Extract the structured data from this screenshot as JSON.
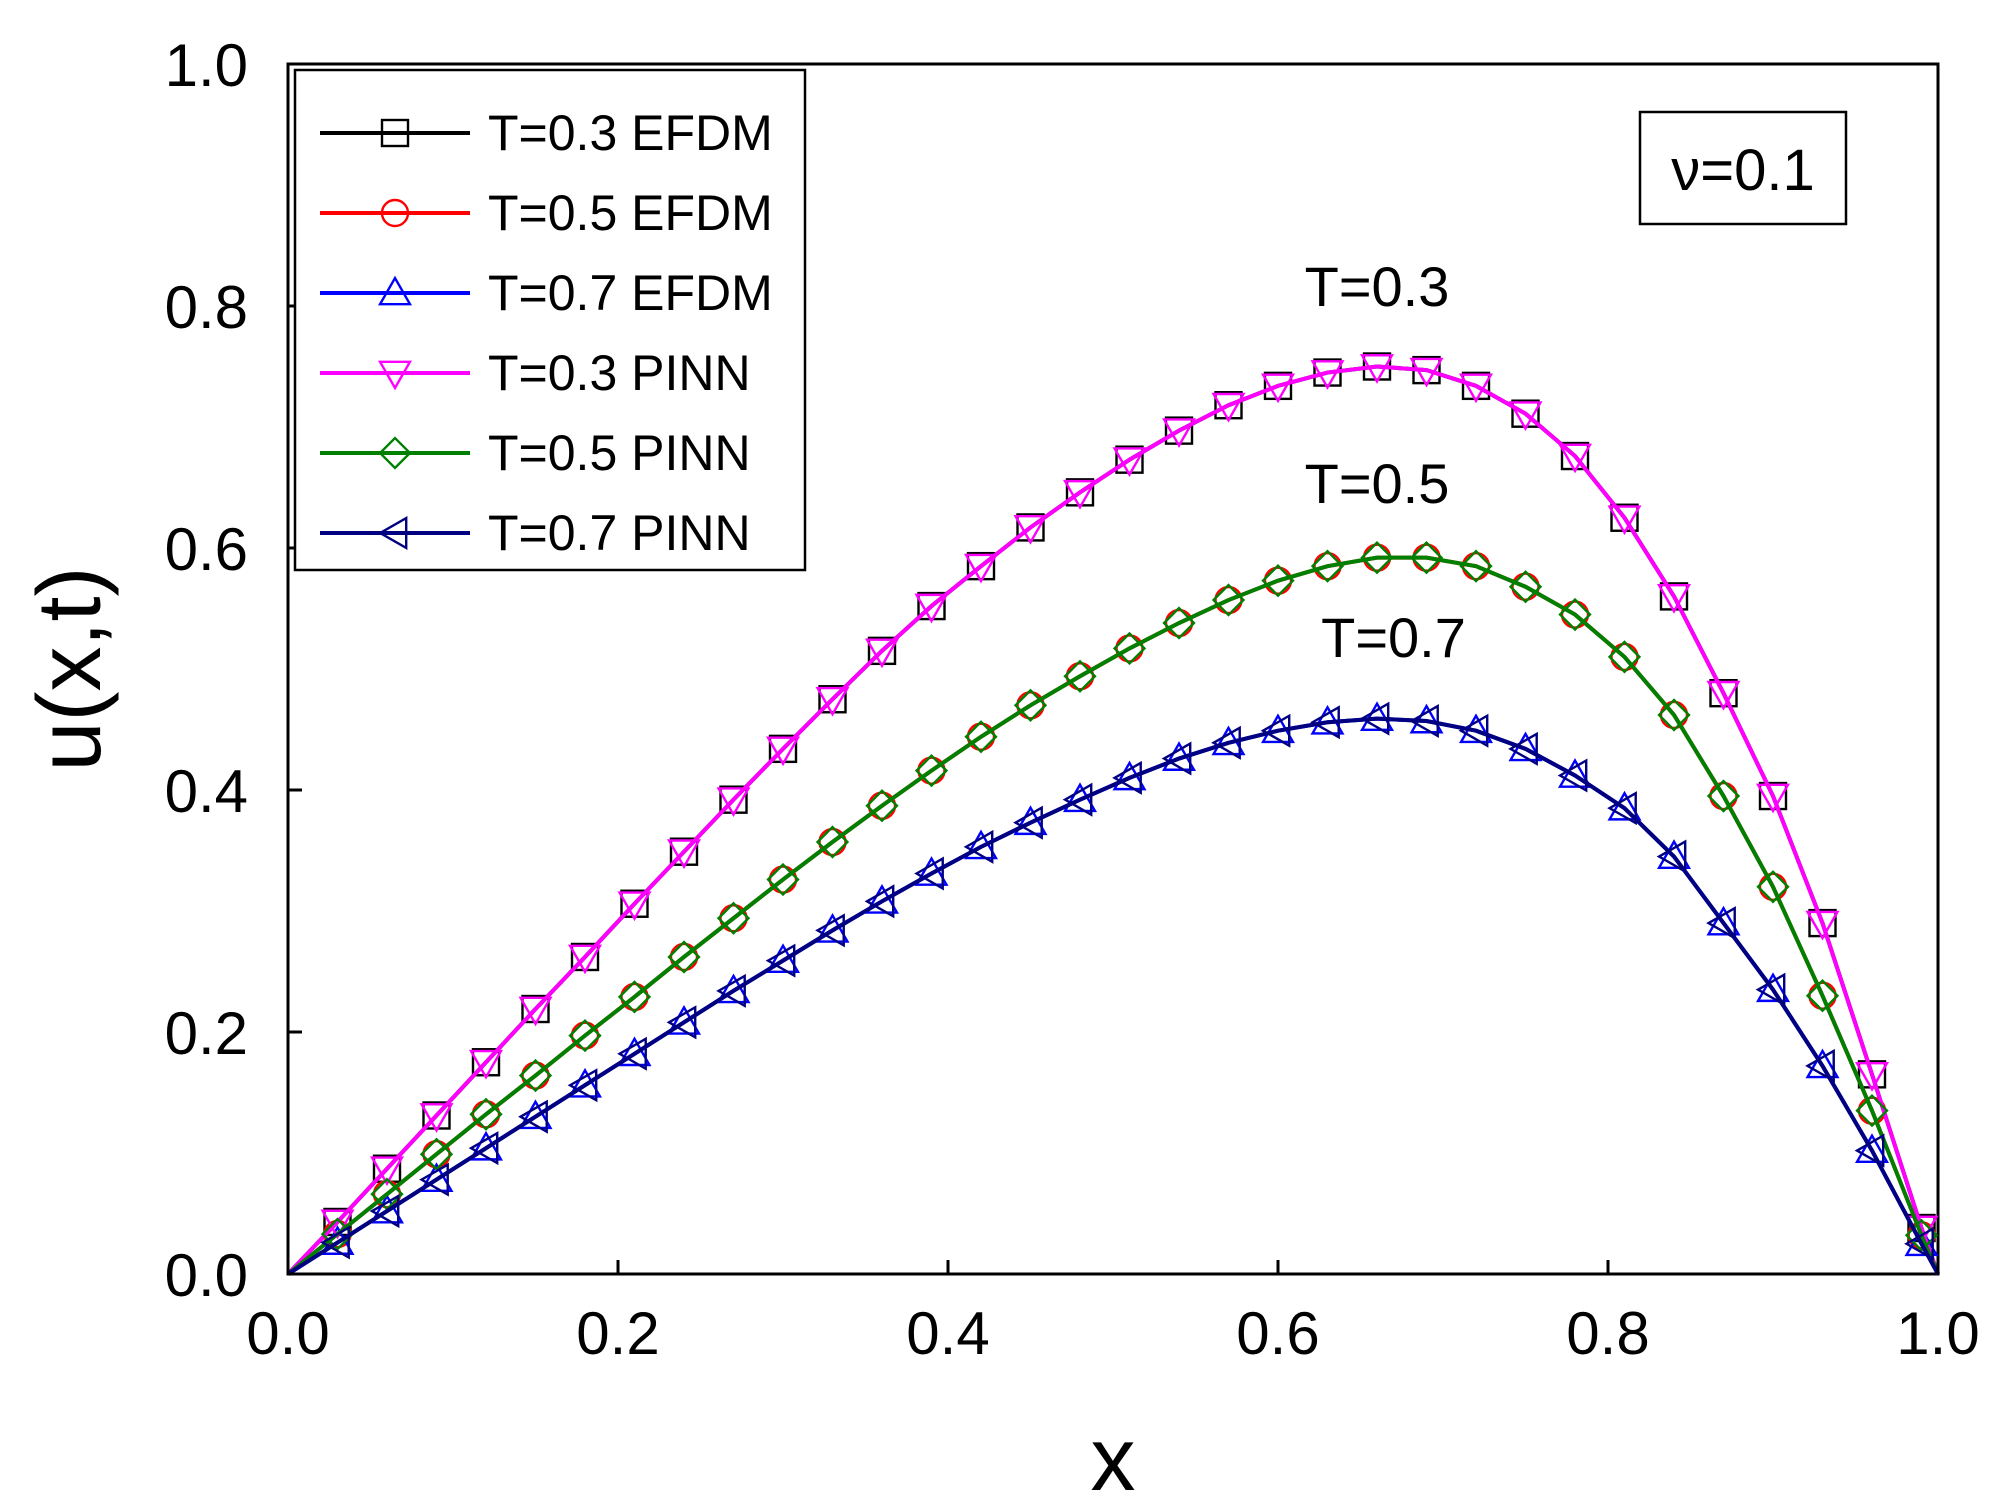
{
  "chart_data": {
    "type": "line",
    "title": "",
    "xlabel": "x",
    "ylabel": "u(x,t)",
    "xlim": [
      0.0,
      1.0
    ],
    "ylim": [
      0.0,
      1.0
    ],
    "xticks": [
      "0.0",
      "0.2",
      "0.4",
      "0.6",
      "0.8",
      "1.0"
    ],
    "yticks": [
      "0.0",
      "0.2",
      "0.4",
      "0.6",
      "0.8",
      "1.0"
    ],
    "grid": false,
    "legend_position": "top-left",
    "parameter_label": "ν=0.1",
    "annotations": [
      {
        "text": "T=0.3",
        "x": 0.66,
        "y": 0.8
      },
      {
        "text": "T=0.5",
        "x": 0.66,
        "y": 0.637
      },
      {
        "text": "T=0.7",
        "x": 0.67,
        "y": 0.51
      }
    ],
    "x": [
      0.0,
      0.03,
      0.06,
      0.09,
      0.12,
      0.15,
      0.18,
      0.21,
      0.24,
      0.27,
      0.3,
      0.33,
      0.36,
      0.39,
      0.42,
      0.45,
      0.48,
      0.51,
      0.54,
      0.57,
      0.6,
      0.63,
      0.66,
      0.69,
      0.72,
      0.75,
      0.78,
      0.81,
      0.84,
      0.87,
      0.9,
      0.93,
      0.96,
      0.99,
      1.0
    ],
    "series": [
      {
        "name": "T=0.3 EFDM",
        "color": "#000000",
        "marker": "square",
        "values": [
          0.0,
          0.043,
          0.087,
          0.131,
          0.175,
          0.219,
          0.262,
          0.306,
          0.349,
          0.392,
          0.434,
          0.475,
          0.515,
          0.552,
          0.585,
          0.617,
          0.646,
          0.673,
          0.697,
          0.718,
          0.734,
          0.745,
          0.75,
          0.747,
          0.734,
          0.711,
          0.676,
          0.625,
          0.56,
          0.48,
          0.395,
          0.29,
          0.165,
          0.038,
          0.0
        ]
      },
      {
        "name": "T=0.5 EFDM",
        "color": "#ff0000",
        "marker": "circle",
        "values": [
          0.0,
          0.033,
          0.066,
          0.099,
          0.132,
          0.164,
          0.197,
          0.229,
          0.262,
          0.294,
          0.326,
          0.357,
          0.387,
          0.416,
          0.444,
          0.47,
          0.494,
          0.517,
          0.538,
          0.557,
          0.573,
          0.585,
          0.592,
          0.592,
          0.585,
          0.568,
          0.545,
          0.51,
          0.462,
          0.395,
          0.32,
          0.23,
          0.135,
          0.032,
          0.0
        ]
      },
      {
        "name": "T=0.7 EFDM",
        "color": "#0000ff",
        "marker": "triangle-up",
        "values": [
          0.0,
          0.026,
          0.052,
          0.078,
          0.104,
          0.13,
          0.156,
          0.182,
          0.208,
          0.234,
          0.259,
          0.284,
          0.308,
          0.331,
          0.353,
          0.373,
          0.392,
          0.41,
          0.426,
          0.439,
          0.449,
          0.456,
          0.459,
          0.457,
          0.449,
          0.434,
          0.412,
          0.385,
          0.345,
          0.29,
          0.235,
          0.172,
          0.102,
          0.025,
          0.0
        ]
      },
      {
        "name": "T=0.3 PINN",
        "color": "#ff00ff",
        "marker": "triangle-down",
        "values": [
          0.0,
          0.043,
          0.087,
          0.131,
          0.175,
          0.219,
          0.262,
          0.306,
          0.349,
          0.392,
          0.434,
          0.475,
          0.515,
          0.552,
          0.585,
          0.617,
          0.646,
          0.673,
          0.697,
          0.718,
          0.734,
          0.745,
          0.75,
          0.747,
          0.734,
          0.711,
          0.676,
          0.625,
          0.56,
          0.48,
          0.395,
          0.29,
          0.165,
          0.038,
          0.0
        ]
      },
      {
        "name": "T=0.5 PINN",
        "color": "#008000",
        "marker": "diamond",
        "values": [
          0.0,
          0.033,
          0.066,
          0.099,
          0.132,
          0.164,
          0.197,
          0.229,
          0.262,
          0.294,
          0.326,
          0.357,
          0.387,
          0.416,
          0.444,
          0.47,
          0.494,
          0.517,
          0.538,
          0.557,
          0.573,
          0.585,
          0.592,
          0.592,
          0.585,
          0.568,
          0.545,
          0.51,
          0.462,
          0.395,
          0.32,
          0.23,
          0.135,
          0.032,
          0.0
        ]
      },
      {
        "name": "T=0.7 PINN",
        "color": "#000080",
        "marker": "triangle-left",
        "values": [
          0.0,
          0.026,
          0.052,
          0.078,
          0.104,
          0.13,
          0.156,
          0.182,
          0.208,
          0.234,
          0.259,
          0.284,
          0.308,
          0.331,
          0.353,
          0.373,
          0.392,
          0.41,
          0.426,
          0.439,
          0.449,
          0.456,
          0.459,
          0.457,
          0.449,
          0.434,
          0.412,
          0.385,
          0.345,
          0.29,
          0.235,
          0.172,
          0.102,
          0.025,
          0.0
        ]
      }
    ]
  }
}
